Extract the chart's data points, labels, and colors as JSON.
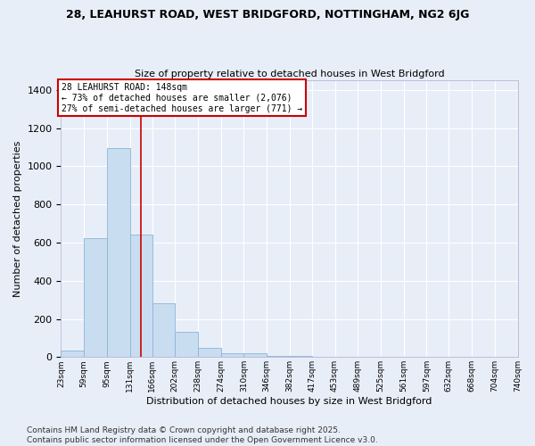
{
  "title_line1": "28, LEAHURST ROAD, WEST BRIDGFORD, NOTTINGHAM, NG2 6JG",
  "title_line2": "Size of property relative to detached houses in West Bridgford",
  "xlabel": "Distribution of detached houses by size in West Bridgford",
  "ylabel": "Number of detached properties",
  "bar_color": "#c9ddf0",
  "bar_edge_color": "#8ab4d8",
  "background_color": "#e8eef8",
  "fig_bg_color": "#e8eef8",
  "grid_color": "#ffffff",
  "vline_color": "#cc0000",
  "annotation_text": "28 LEAHURST ROAD: 148sqm\n← 73% of detached houses are smaller (2,076)\n27% of semi-detached houses are larger (771) →",
  "vline_x": 148,
  "bin_edges": [
    23,
    59,
    95,
    131,
    166,
    202,
    238,
    274,
    310,
    346,
    382,
    417,
    453,
    489,
    525,
    561,
    597,
    632,
    668,
    704,
    740
  ],
  "categories": [
    "23sqm",
    "59sqm",
    "95sqm",
    "131sqm",
    "166sqm",
    "202sqm",
    "238sqm",
    "274sqm",
    "310sqm",
    "346sqm",
    "382sqm",
    "417sqm",
    "453sqm",
    "489sqm",
    "525sqm",
    "561sqm",
    "597sqm",
    "632sqm",
    "668sqm",
    "704sqm",
    "740sqm"
  ],
  "heights": [
    35,
    625,
    1095,
    640,
    280,
    130,
    50,
    22,
    18,
    5,
    5,
    0,
    0,
    0,
    0,
    0,
    0,
    0,
    0,
    0,
    0
  ],
  "ylim": [
    0,
    1450
  ],
  "yticks": [
    0,
    200,
    400,
    600,
    800,
    1000,
    1200,
    1400
  ],
  "footer": "Contains HM Land Registry data © Crown copyright and database right 2025.\nContains public sector information licensed under the Open Government Licence v3.0.",
  "footer_fontsize": 6.5
}
